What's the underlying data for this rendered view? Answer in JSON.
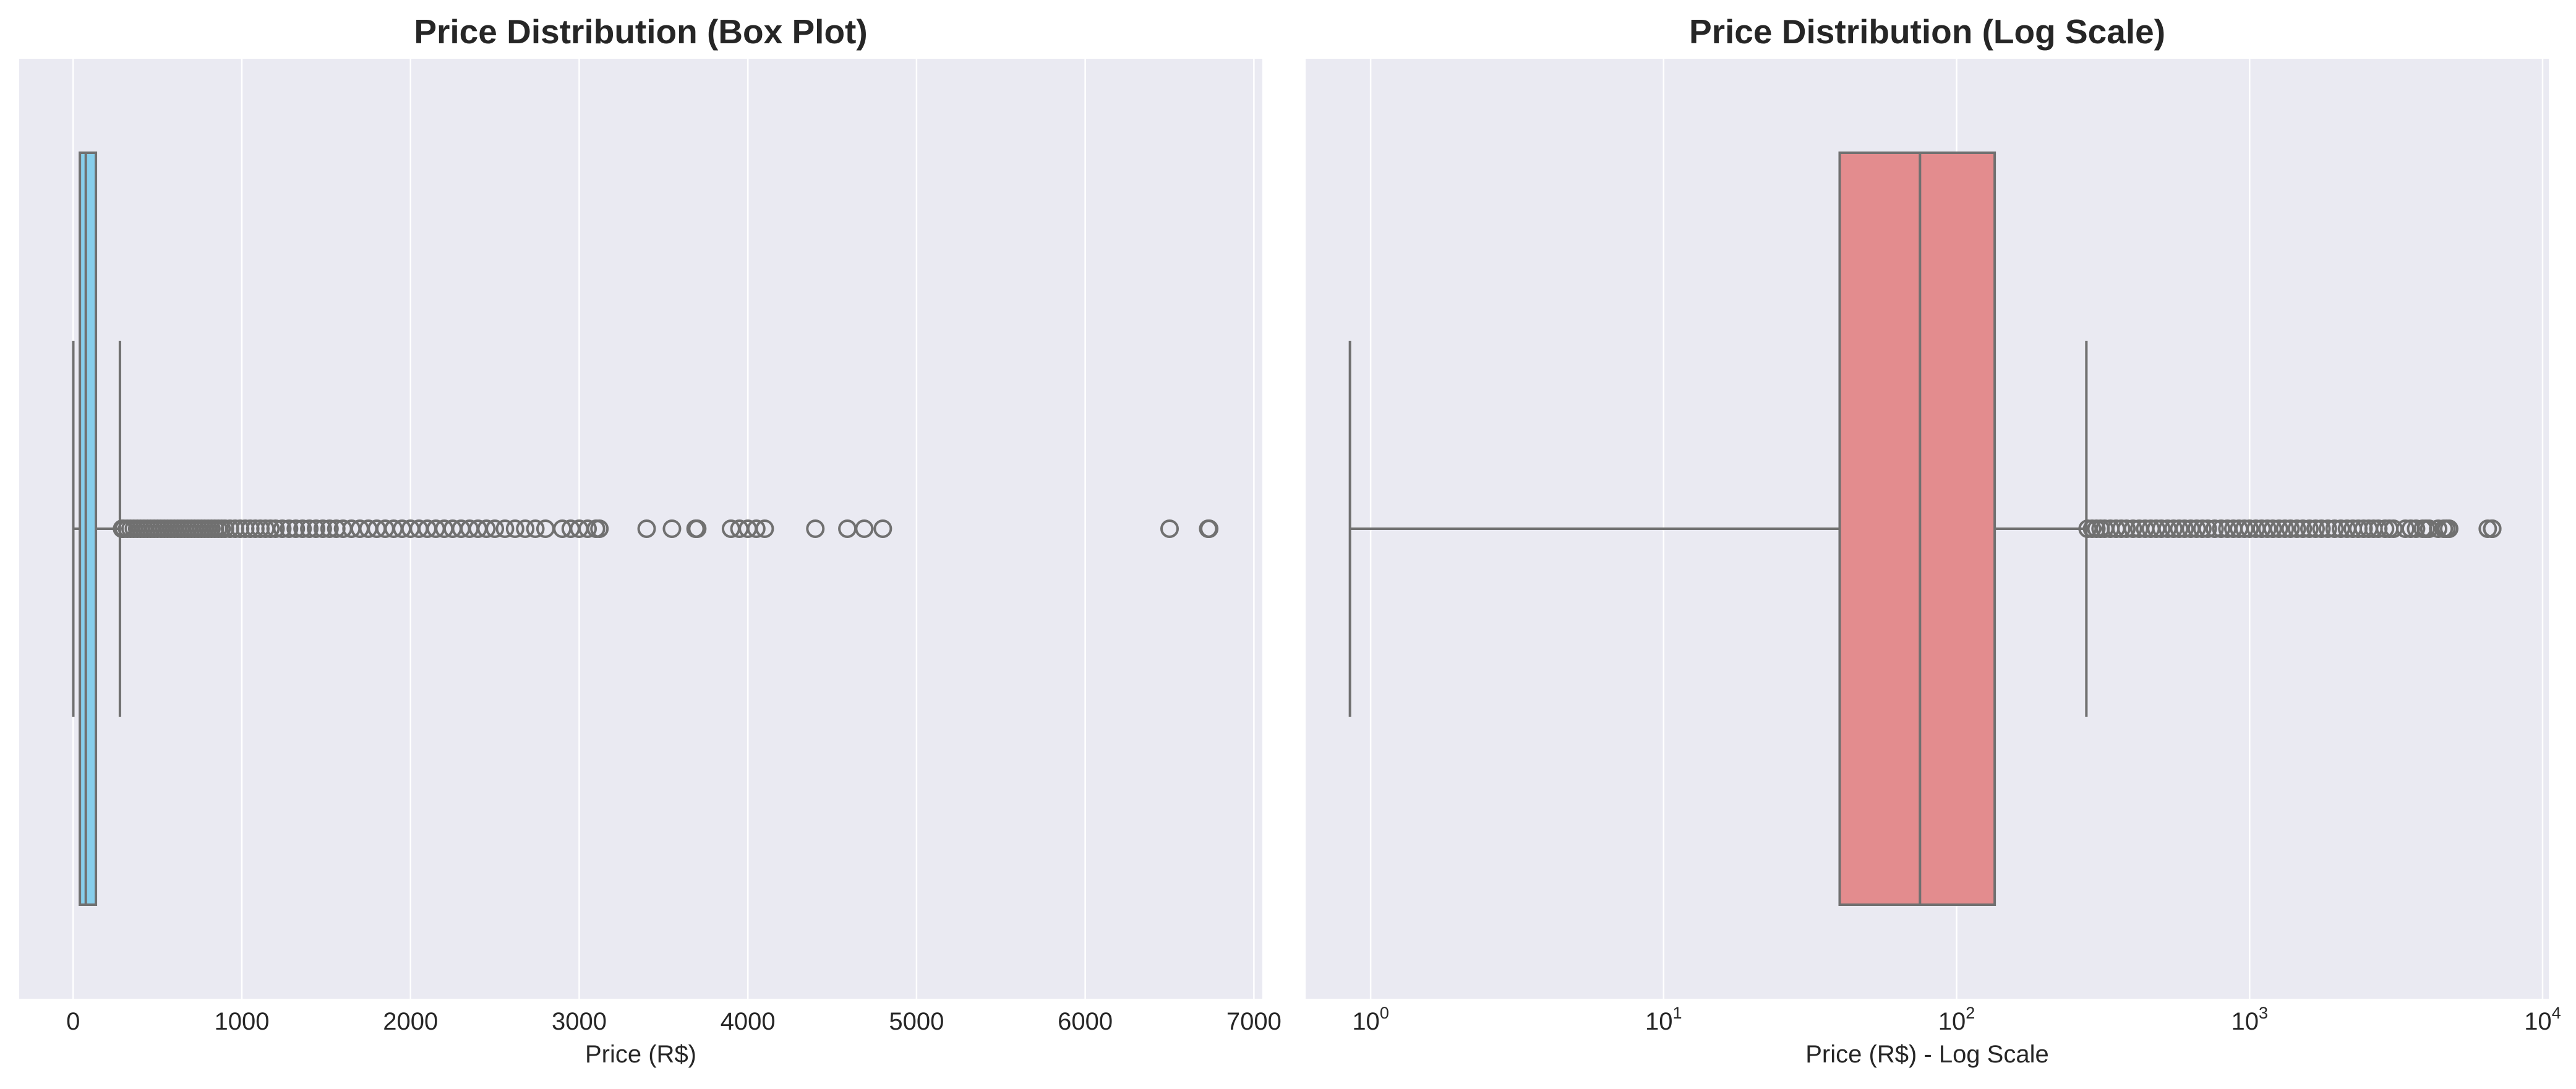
{
  "chart_data": [
    {
      "type": "box",
      "title": "Price Distribution (Box Plot)",
      "xlabel": "Price (R$)",
      "ylabel": "",
      "xscale": "linear",
      "xlim": [
        -320,
        7050
      ],
      "xticks": [
        0,
        1000,
        2000,
        3000,
        4000,
        5000,
        6000,
        7000
      ],
      "xtick_labels": [
        "0",
        "1000",
        "2000",
        "3000",
        "4000",
        "5000",
        "6000",
        "7000"
      ],
      "grid": true,
      "box_color": "#87ceeb",
      "stats": {
        "whisker_low": 0.85,
        "q1": 39.9,
        "median": 74.99,
        "q3": 134.9,
        "whisker_high": 277.3
      },
      "outliers": [
        290,
        300,
        320,
        340,
        360,
        380,
        400,
        420,
        440,
        460,
        480,
        500,
        520,
        540,
        560,
        580,
        600,
        620,
        640,
        660,
        680,
        700,
        720,
        740,
        760,
        780,
        800,
        820,
        840,
        860,
        880,
        900,
        930,
        960,
        990,
        1020,
        1050,
        1080,
        1110,
        1140,
        1170,
        1200,
        1240,
        1280,
        1320,
        1360,
        1400,
        1440,
        1480,
        1520,
        1560,
        1600,
        1650,
        1700,
        1750,
        1800,
        1850,
        1900,
        1950,
        2000,
        2050,
        2100,
        2150,
        2200,
        2250,
        2300,
        2350,
        2400,
        2450,
        2500,
        2560,
        2620,
        2680,
        2740,
        2800,
        2900,
        2950,
        3000,
        3050,
        3100,
        3120,
        3400,
        3550,
        3690,
        3700,
        3900,
        3950,
        4000,
        4050,
        4100,
        4400,
        4590,
        4690,
        4800,
        6500,
        6729,
        6735
      ]
    },
    {
      "type": "box",
      "title": "Price Distribution (Log Scale)",
      "xlabel": "Price (R$) - Log Scale",
      "ylabel": "",
      "xscale": "log",
      "xlim": [
        0.6,
        10500
      ],
      "xticks": [
        1,
        10,
        100,
        1000,
        10000
      ],
      "xtick_labels": [
        {
          "base": "10",
          "exp": "0"
        },
        {
          "base": "10",
          "exp": "1"
        },
        {
          "base": "10",
          "exp": "2"
        },
        {
          "base": "10",
          "exp": "3"
        },
        {
          "base": "10",
          "exp": "4"
        }
      ],
      "grid": true,
      "box_color": "#e38c8e",
      "stats": {
        "whisker_low": 0.85,
        "q1": 39.9,
        "median": 74.99,
        "q3": 134.9,
        "whisker_high": 277.3
      },
      "outliers": [
        280,
        290,
        300,
        310,
        320,
        335,
        350,
        365,
        380,
        400,
        420,
        440,
        460,
        480,
        500,
        525,
        550,
        575,
        600,
        630,
        660,
        690,
        720,
        760,
        800,
        840,
        880,
        920,
        960,
        1000,
        1050,
        1100,
        1150,
        1200,
        1260,
        1320,
        1380,
        1450,
        1520,
        1600,
        1680,
        1760,
        1850,
        1950,
        2050,
        2150,
        2250,
        2350,
        2450,
        2550,
        2650,
        2750,
        2900,
        3000,
        3100,
        3400,
        3550,
        3700,
        3900,
        4000,
        4100,
        4400,
        4600,
        4700,
        4800,
        6500,
        6729,
        6735
      ]
    }
  ]
}
